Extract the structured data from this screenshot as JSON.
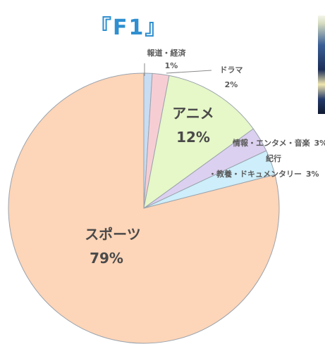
{
  "title": "『F1』",
  "chart_data": {
    "type": "pie",
    "slices": [
      {
        "label": "報道・経済",
        "value": 1,
        "value_text": "1%",
        "color": "#c8dcf2"
      },
      {
        "label": "ドラマ",
        "value": 2,
        "value_text": "2%",
        "color": "#f7cdd4"
      },
      {
        "label": "アニメ",
        "value": 12,
        "value_text": "12%",
        "color": "#e6f7c8"
      },
      {
        "label": "情報・エンタメ・音楽",
        "value": 3,
        "value_text": "3%",
        "color": "#dcd0f0"
      },
      {
        "label_lines": [
          "紀行",
          "・教養・ドキュメンタリー"
        ],
        "value": 3,
        "value_text": "3%",
        "color": "#cdeefa"
      },
      {
        "label": "スポーツ",
        "value": 79,
        "value_text": "79%",
        "color": "#fdd5b8"
      }
    ]
  }
}
